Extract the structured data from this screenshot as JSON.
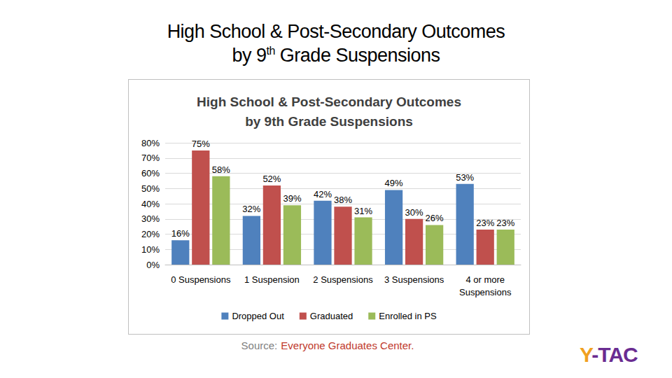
{
  "slide": {
    "title": [
      "High School & Post-Secondary Outcomes",
      "by 9th Grade Suspensions"
    ],
    "source_label": "Source:",
    "source": "Everyone Graduates Center.",
    "logo": "Y-TAC"
  },
  "chart_data": {
    "type": "bar",
    "title": "High School & Post-Secondary Outcomes\nby 9th Grade Suspensions",
    "categories": [
      "0 Suspensions",
      "1 Suspension",
      "2 Suspensions",
      "3 Suspensions",
      "4 or more\nSuspensions"
    ],
    "series": [
      {
        "name": "Dropped Out",
        "color": "#4f81bd",
        "values": [
          16,
          32,
          42,
          49,
          53
        ],
        "value_labels": [
          "16%",
          "32%",
          "42%",
          "49%",
          "53%"
        ]
      },
      {
        "name": "Graduated",
        "color": "#c0504d",
        "values": [
          75,
          52,
          38,
          30,
          23
        ],
        "value_labels": [
          "75%",
          "52%",
          "38%",
          "30%",
          "23%"
        ]
      },
      {
        "name": "Enrolled in PS",
        "color": "#9bbb59",
        "values": [
          58,
          39,
          31,
          26,
          23
        ],
        "value_labels": [
          "58%",
          "39%",
          "31%",
          "26%",
          "23%"
        ]
      }
    ],
    "ylim": [
      0,
      80
    ],
    "yticks": [
      {
        "value": 0,
        "label": "0%"
      },
      {
        "value": 10,
        "label": "10%"
      },
      {
        "value": 20,
        "label": "20%"
      },
      {
        "value": 30,
        "label": "30%"
      },
      {
        "value": 40,
        "label": "40%"
      },
      {
        "value": 50,
        "label": "50%"
      },
      {
        "value": 60,
        "label": "60%"
      },
      {
        "value": 70,
        "label": "70%"
      },
      {
        "value": 80,
        "label": "80%"
      }
    ],
    "grid": true,
    "legend": "bottom",
    "data_labels": true
  }
}
